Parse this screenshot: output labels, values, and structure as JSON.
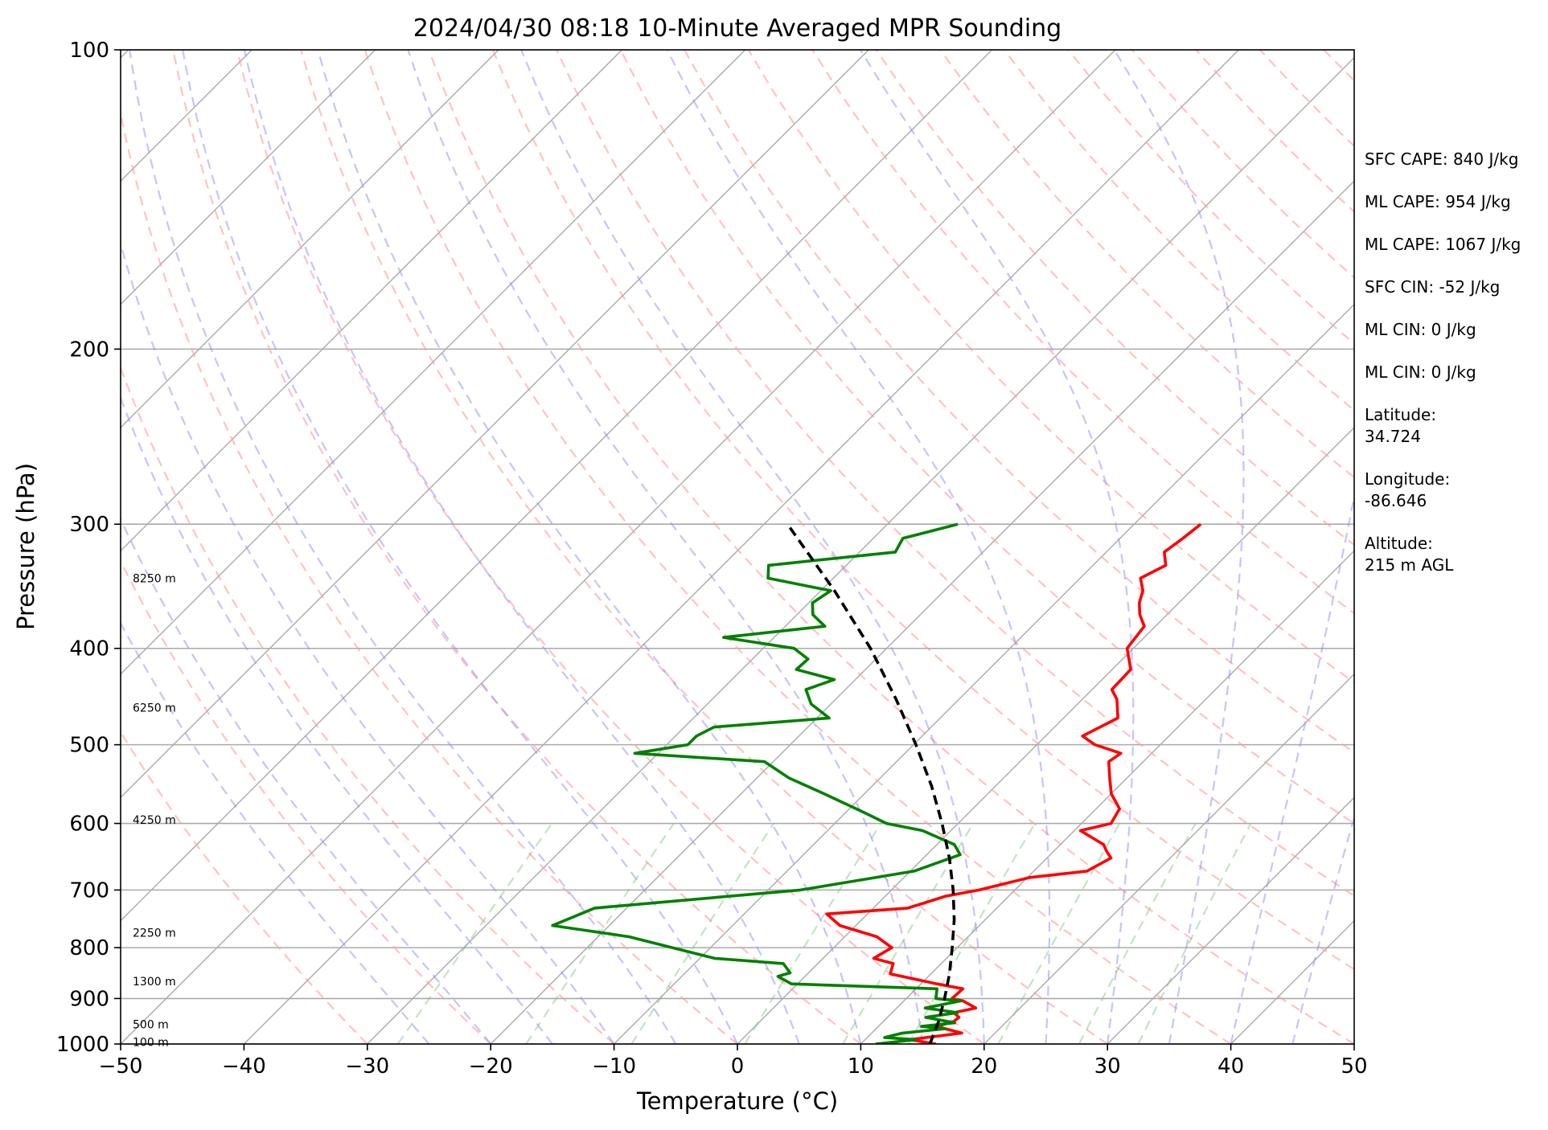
{
  "chart_data": {
    "type": "line",
    "title": "2024/04/30 08:18 10-Minute Averaged MPR Sounding",
    "xlabel": "Temperature (°C)",
    "ylabel": "Pressure (hPa)",
    "xlim": [
      -50,
      50
    ],
    "ylim": [
      1000,
      100
    ],
    "y_scale": "log",
    "skew": "skew-T",
    "grid": true,
    "x_ticks": [
      "−50",
      "−40",
      "−30",
      "−20",
      "−10",
      "0",
      "10",
      "20",
      "30",
      "40",
      "50"
    ],
    "y_ticks": [
      "100",
      "200",
      "300",
      "400",
      "500",
      "600",
      "700",
      "800",
      "900",
      "1000"
    ],
    "height_labels": [
      {
        "p": 995,
        "label": "100 m"
      },
      {
        "p": 955,
        "label": "500 m"
      },
      {
        "p": 865,
        "label": "1300 m"
      },
      {
        "p": 773,
        "label": "2250 m"
      },
      {
        "p": 595,
        "label": "4250 m"
      },
      {
        "p": 459,
        "label": "6250 m"
      },
      {
        "p": 340,
        "label": "8250 m"
      }
    ],
    "series": [
      {
        "kind": "temperature",
        "color": "#ff0000",
        "points": [
          [
            1000,
            16.1
          ],
          [
            990,
            13.6
          ],
          [
            975,
            17.3
          ],
          [
            960,
            14.7
          ],
          [
            950,
            15.7
          ],
          [
            940,
            15.8
          ],
          [
            930,
            15.0
          ],
          [
            920,
            16.4
          ],
          [
            905,
            14.8
          ],
          [
            900,
            13.7
          ],
          [
            880,
            13.8
          ],
          [
            870,
            11.3
          ],
          [
            850,
            6.7
          ],
          [
            830,
            6.1
          ],
          [
            820,
            4.1
          ],
          [
            800,
            4.7
          ],
          [
            780,
            2.6
          ],
          [
            760,
            -1.3
          ],
          [
            740,
            -3.3
          ],
          [
            730,
            2.8
          ],
          [
            710,
            4.9
          ],
          [
            700,
            7.1
          ],
          [
            680,
            10.2
          ],
          [
            670,
            14.3
          ],
          [
            650,
            15.2
          ],
          [
            640,
            14.3
          ],
          [
            630,
            13.5
          ],
          [
            610,
            10.5
          ],
          [
            600,
            12.4
          ],
          [
            580,
            11.9
          ],
          [
            560,
            10.0
          ],
          [
            540,
            8.6
          ],
          [
            520,
            7.2
          ],
          [
            510,
            7.5
          ],
          [
            500,
            4.7
          ],
          [
            490,
            3.0
          ],
          [
            470,
            4.4
          ],
          [
            450,
            2.8
          ],
          [
            440,
            1.6
          ],
          [
            420,
            1.5
          ],
          [
            400,
            -0.5
          ],
          [
            380,
            -0.9
          ],
          [
            370,
            -2.2
          ],
          [
            360,
            -3.2
          ],
          [
            350,
            -3.9
          ],
          [
            340,
            -5.1
          ],
          [
            330,
            -4.1
          ],
          [
            320,
            -5.3
          ],
          [
            310,
            -4.9
          ],
          [
            300,
            -4.6
          ]
        ]
      },
      {
        "kind": "dewpoint",
        "color": "#008000",
        "points": [
          [
            1000,
            11.2
          ],
          [
            990,
            14.1
          ],
          [
            985,
            11.4
          ],
          [
            975,
            12.5
          ],
          [
            965,
            15.6
          ],
          [
            960,
            13.5
          ],
          [
            952,
            15.9
          ],
          [
            940,
            13.1
          ],
          [
            930,
            15.3
          ],
          [
            920,
            12.3
          ],
          [
            905,
            14.6
          ],
          [
            900,
            12.4
          ],
          [
            880,
            11.7
          ],
          [
            870,
            -0.5
          ],
          [
            855,
            -2.2
          ],
          [
            848,
            -1.5
          ],
          [
            830,
            -2.8
          ],
          [
            820,
            -8.8
          ],
          [
            780,
            -17.5
          ],
          [
            760,
            -24.6
          ],
          [
            730,
            -22.6
          ],
          [
            700,
            -7.4
          ],
          [
            670,
            0.3
          ],
          [
            645,
            2.7
          ],
          [
            630,
            1.4
          ],
          [
            610,
            -2.3
          ],
          [
            600,
            -5.8
          ],
          [
            585,
            -8.5
          ],
          [
            560,
            -13.3
          ],
          [
            540,
            -17.4
          ],
          [
            520,
            -20.7
          ],
          [
            510,
            -31.9
          ],
          [
            500,
            -28.3
          ],
          [
            490,
            -28.3
          ],
          [
            480,
            -27.6
          ],
          [
            470,
            -19.0
          ],
          [
            455,
            -21.6
          ],
          [
            440,
            -23.2
          ],
          [
            430,
            -21.7
          ],
          [
            420,
            -25.6
          ],
          [
            410,
            -25.5
          ],
          [
            400,
            -27.5
          ],
          [
            390,
            -34.1
          ],
          [
            380,
            -26.8
          ],
          [
            370,
            -28.7
          ],
          [
            360,
            -29.7
          ],
          [
            350,
            -29.2
          ],
          [
            340,
            -35.3
          ],
          [
            330,
            -36.3
          ],
          [
            320,
            -27.1
          ],
          [
            310,
            -27.6
          ],
          [
            300,
            -24.3
          ]
        ]
      },
      {
        "kind": "parcel",
        "color": "#000000",
        "points": [
          [
            1000,
            15.6
          ],
          [
            950,
            14.5
          ],
          [
            900,
            13.1
          ],
          [
            850,
            11.5
          ],
          [
            800,
            9.6
          ],
          [
            750,
            7.5
          ],
          [
            700,
            5.0
          ],
          [
            650,
            2.1
          ],
          [
            600,
            -1.3
          ],
          [
            550,
            -5.2
          ],
          [
            500,
            -9.8
          ],
          [
            450,
            -15.1
          ],
          [
            400,
            -21.3
          ],
          [
            350,
            -28.9
          ],
          [
            300,
            -38.1
          ]
        ]
      }
    ]
  },
  "info": {
    "sfc_cape": "SFC CAPE: 840 J/kg",
    "ml_cape": "ML CAPE: 954 J/kg",
    "mu_cape": "ML CAPE: 1067 J/kg",
    "sfc_cin": "SFC CIN: -52 J/kg",
    "ml_cin": "ML CIN: 0 J/kg",
    "mu_cin": "ML CIN: 0 J/kg",
    "latitude": "Latitude:\n34.724",
    "longitude": "Longitude:\n-86.646",
    "altitude": "Altitude:\n215 m AGL"
  }
}
